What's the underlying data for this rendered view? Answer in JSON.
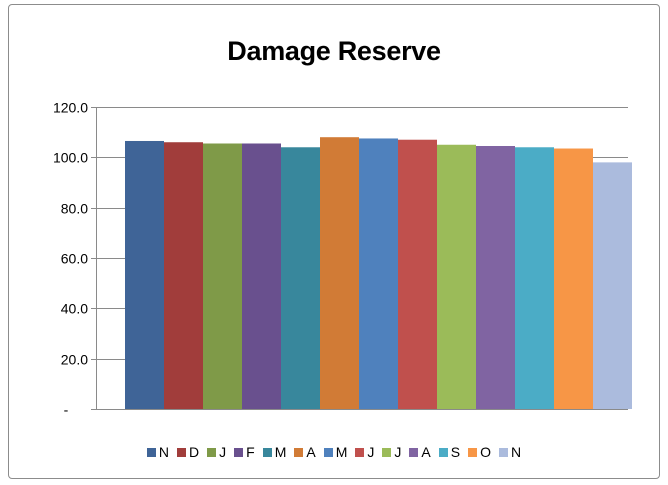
{
  "chart_data": {
    "type": "bar",
    "title": "Damage Reserve",
    "xlabel": "",
    "ylabel": "",
    "ylim": [
      0,
      120
    ],
    "yticks": [
      0,
      20,
      40,
      60,
      80,
      100,
      120
    ],
    "ytick_labels": [
      "-",
      "20.0",
      "40.0",
      "60.0",
      "80.0",
      "100.0",
      "120.0"
    ],
    "grid": true,
    "legend_position": "bottom",
    "series": [
      {
        "name": "N",
        "color": "#3f6497",
        "values": [
          106.5
        ]
      },
      {
        "name": "D",
        "color": "#a13d3b",
        "values": [
          106.0
        ]
      },
      {
        "name": "J",
        "color": "#7f9a48",
        "values": [
          105.5
        ]
      },
      {
        "name": "F",
        "color": "#69508e",
        "values": [
          105.5
        ]
      },
      {
        "name": "M",
        "color": "#38879c",
        "values": [
          104.0
        ]
      },
      {
        "name": "A",
        "color": "#d17b36",
        "values": [
          108.0
        ]
      },
      {
        "name": "M",
        "color": "#4f81bd",
        "values": [
          107.5
        ]
      },
      {
        "name": "J",
        "color": "#c0504d",
        "values": [
          107.0
        ]
      },
      {
        "name": "J",
        "color": "#9bbb59",
        "values": [
          105.0
        ]
      },
      {
        "name": "A",
        "color": "#8064a2",
        "values": [
          104.5
        ]
      },
      {
        "name": "S",
        "color": "#4bacc6",
        "values": [
          104.0
        ]
      },
      {
        "name": "O",
        "color": "#f79646",
        "values": [
          103.5
        ]
      },
      {
        "name": "N",
        "color": "#abbbdd",
        "values": [
          98.0
        ]
      }
    ]
  }
}
